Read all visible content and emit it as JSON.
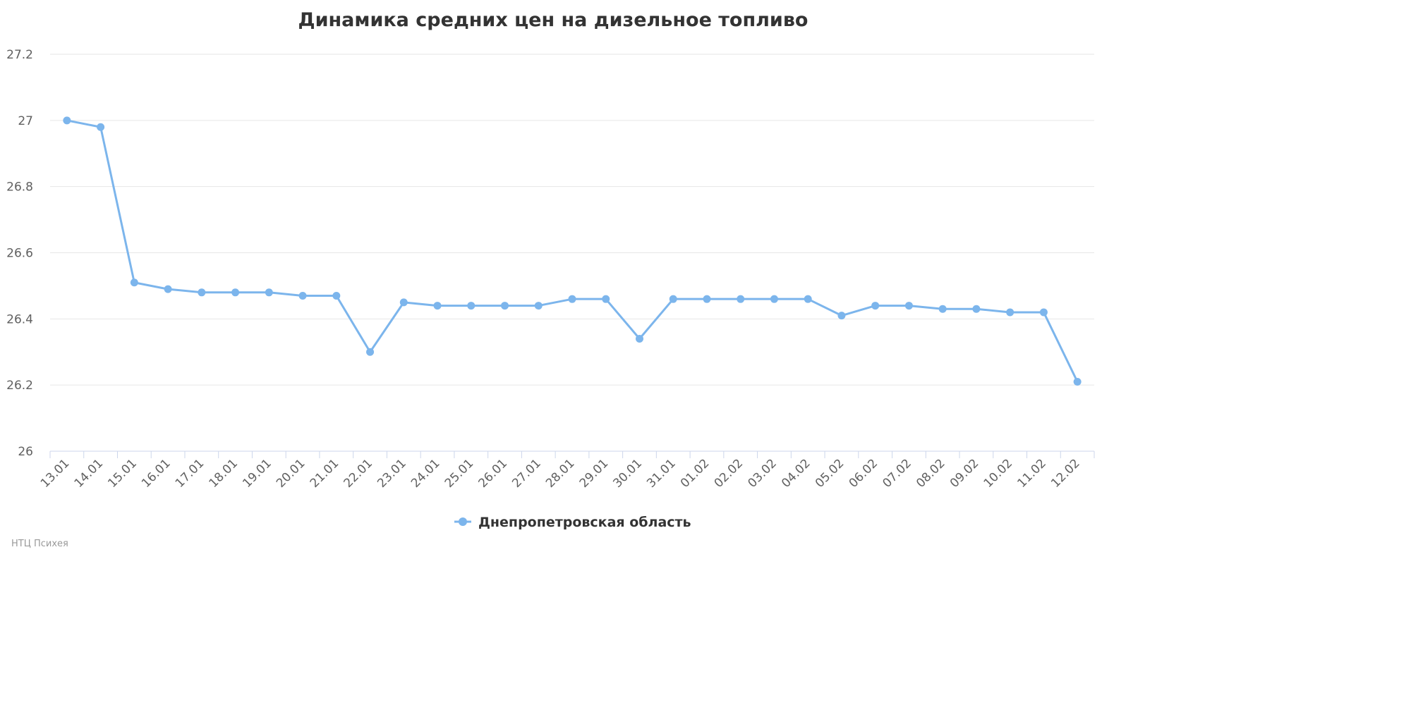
{
  "chart_data": {
    "type": "line",
    "title": "Динамика средних цен на дизельное топливо",
    "xlabel": "",
    "ylabel": "",
    "categories": [
      "13.01",
      "14.01",
      "15.01",
      "16.01",
      "17.01",
      "18.01",
      "19.01",
      "20.01",
      "21.01",
      "22.01",
      "23.01",
      "24.01",
      "25.01",
      "26.01",
      "27.01",
      "28.01",
      "29.01",
      "30.01",
      "31.01",
      "01.02",
      "02.02",
      "03.02",
      "04.02",
      "05.02",
      "06.02",
      "07.02",
      "08.02",
      "09.02",
      "10.02",
      "11.02",
      "12.02"
    ],
    "series": [
      {
        "name": "Днепропетровская область",
        "color": "#7cb5ec",
        "values": [
          27.0,
          26.98,
          26.51,
          26.49,
          26.48,
          26.48,
          26.48,
          26.47,
          26.47,
          26.3,
          26.45,
          26.44,
          26.44,
          26.44,
          26.44,
          26.46,
          26.46,
          26.34,
          26.46,
          26.46,
          26.46,
          26.46,
          26.46,
          26.41,
          26.44,
          26.44,
          26.43,
          26.43,
          26.42,
          26.42,
          26.21
        ]
      }
    ],
    "ylim": [
      26,
      27.2
    ],
    "yticks": [
      "26",
      "26.2",
      "26.4",
      "26.6",
      "26.8",
      "27",
      "27.2"
    ],
    "grid": true,
    "legend_position": "bottom-center"
  },
  "credits": "НТЦ Психея"
}
